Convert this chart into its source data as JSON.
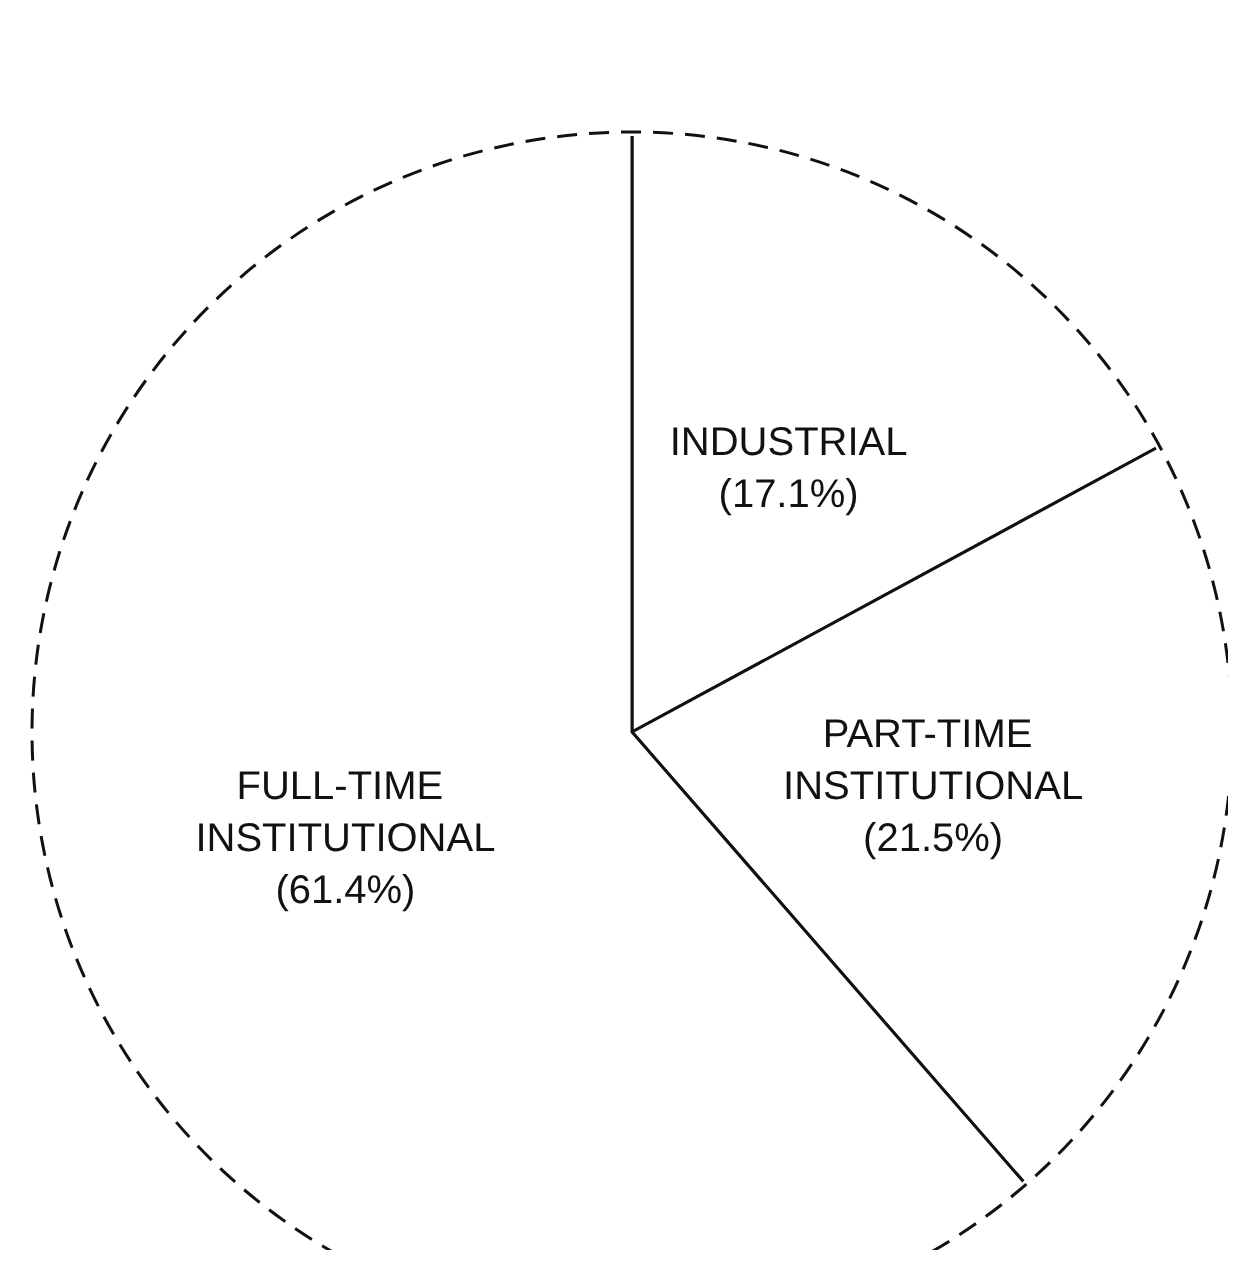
{
  "chart_data": {
    "type": "pie",
    "categories": [
      "INDUSTRIAL",
      "PART-TIME INSTITUTIONAL",
      "FULL-TIME INSTITUTIONAL"
    ],
    "values": [
      17.1,
      21.5,
      61.4
    ],
    "colors": [
      "#ffffff",
      "#ffffff",
      "#ffffff"
    ],
    "value_labels": [
      "(17.1%)",
      "(21.5%)",
      "(61.4%)"
    ]
  }
}
